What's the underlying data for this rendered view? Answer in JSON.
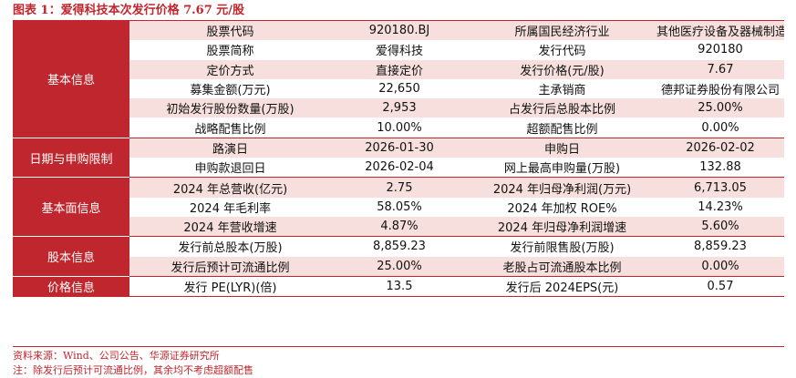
{
  "title": "图表 1：爱得科技本次发行价格 7.67 元/股",
  "groups": [
    {
      "label": "基本信息",
      "rows": [
        [
          "股票代码",
          "920180.BJ",
          "所属国民经济行业",
          "其他医疗设备及器械制造"
        ],
        [
          "股票简称",
          "爱得科技",
          "发行代码",
          "920180"
        ],
        [
          "定价方式",
          "直接定价",
          "发行价格(元/股)",
          "7.67"
        ],
        [
          "募集金额(万元)",
          "22,650",
          "主承销商",
          "德邦证券股份有限公司"
        ],
        [
          "初始发行股份数量(万股)",
          "2,953",
          "占发行后总股本比例",
          "25.00%"
        ],
        [
          "战略配售比例",
          "10.00%",
          "超额配售比例",
          "0.00%"
        ]
      ]
    },
    {
      "label": "日期与申购限制",
      "rows": [
        [
          "路演日",
          "2026-01-30",
          "申购日",
          "2026-02-02"
        ],
        [
          "申购款退回日",
          "2026-02-04",
          "网上最高申购量(万股)",
          "132.88"
        ]
      ]
    },
    {
      "label": "基本面信息",
      "rows": [
        [
          "2024 年总营收(亿元)",
          "2.75",
          "2024 年归母净利润(万元)",
          "6,713.05"
        ],
        [
          "2024 年毛利率",
          "58.05%",
          "2024 年加权 ROE%",
          "14.23%"
        ],
        [
          "2024 年营收增速",
          "4.87%",
          "2024 年归母净利润增速",
          "5.60%"
        ]
      ]
    },
    {
      "label": "股本信息",
      "rows": [
        [
          "发行前总股本(万股)",
          "8,859.23",
          "发行前限售股(万股)",
          "8,859.23"
        ],
        [
          "发行后预计可流通比例",
          "25.00%",
          "老股占可流通股本比例",
          "0.00%"
        ]
      ]
    },
    {
      "label": "价格信息",
      "rows": [
        [
          "发行 PE(LYR)(倍)",
          "13.5",
          "发行后 2024EPS(元)",
          "0.57"
        ]
      ]
    }
  ],
  "footer": {
    "source": "资料来源：Wind、公司公告、华源证券研究所",
    "note": "注：除发行后预计可流通比例，其余均不考虑超额配售"
  }
}
